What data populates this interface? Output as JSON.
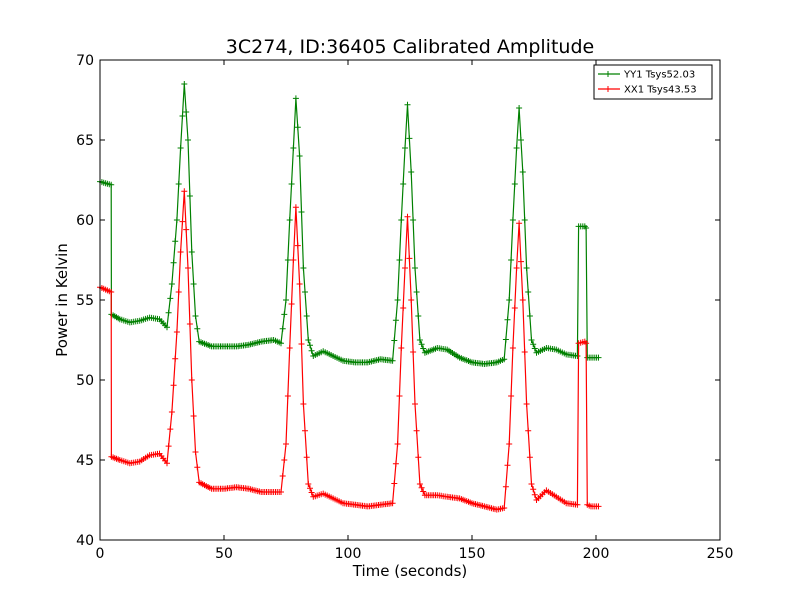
{
  "chart_data": {
    "type": "line",
    "title": "3C274, ID:36405 Calibrated Amplitude",
    "xlabel": "Time (seconds)",
    "ylabel": "Power in Kelvin",
    "xlim": [
      0,
      250
    ],
    "ylim": [
      40,
      70
    ],
    "xticks": [
      "0",
      "50",
      "100",
      "150",
      "200",
      "250"
    ],
    "yticks": [
      "40",
      "45",
      "50",
      "55",
      "60",
      "65",
      "70"
    ],
    "grid": false,
    "legend_position": "top-right",
    "marker": "plus",
    "series": [
      {
        "name": "YY1 Tsys52.03",
        "color": "#008000",
        "points": [
          [
            0,
            62.4
          ],
          [
            4.5,
            62.2
          ],
          [
            4.6,
            54.1
          ],
          [
            8,
            53.8
          ],
          [
            12,
            53.6
          ],
          [
            16,
            53.7
          ],
          [
            20,
            53.9
          ],
          [
            24,
            53.8
          ],
          [
            27,
            53.3
          ],
          [
            29,
            56
          ],
          [
            31,
            60
          ],
          [
            32.5,
            64.5
          ],
          [
            34,
            68.5
          ],
          [
            35.5,
            65
          ],
          [
            37,
            58
          ],
          [
            38.5,
            54
          ],
          [
            40,
            52.4
          ],
          [
            45,
            52.1
          ],
          [
            50,
            52.1
          ],
          [
            55,
            52.1
          ],
          [
            60,
            52.2
          ],
          [
            65,
            52.4
          ],
          [
            70,
            52.5
          ],
          [
            73,
            52.3
          ],
          [
            75,
            55
          ],
          [
            76.5,
            60
          ],
          [
            78,
            64.5
          ],
          [
            79,
            67.6
          ],
          [
            80.5,
            64
          ],
          [
            82,
            57
          ],
          [
            84,
            52.5
          ],
          [
            86,
            51.5
          ],
          [
            90,
            51.8
          ],
          [
            94,
            51.5
          ],
          [
            98,
            51.2
          ],
          [
            103,
            51.1
          ],
          [
            108,
            51.1
          ],
          [
            113,
            51.3
          ],
          [
            118,
            51.2
          ],
          [
            120,
            55
          ],
          [
            121.5,
            60
          ],
          [
            123,
            64.5
          ],
          [
            124,
            67.2
          ],
          [
            125.5,
            63
          ],
          [
            127,
            57
          ],
          [
            129,
            52.5
          ],
          [
            131,
            51.7
          ],
          [
            136,
            52
          ],
          [
            140,
            51.9
          ],
          [
            145,
            51.4
          ],
          [
            150,
            51.1
          ],
          [
            155,
            51
          ],
          [
            160,
            51.1
          ],
          [
            163,
            51.3
          ],
          [
            165,
            55
          ],
          [
            166.5,
            60
          ],
          [
            168,
            64.5
          ],
          [
            169,
            67
          ],
          [
            170.5,
            63
          ],
          [
            172,
            57
          ],
          [
            174,
            52.5
          ],
          [
            176,
            51.7
          ],
          [
            180,
            52
          ],
          [
            184,
            51.9
          ],
          [
            188,
            51.6
          ],
          [
            192.5,
            51.5
          ],
          [
            193,
            59.6
          ],
          [
            195.5,
            59.6
          ],
          [
            196,
            59.5
          ],
          [
            196.5,
            51.4
          ],
          [
            198,
            51.4
          ],
          [
            201,
            51.4
          ]
        ]
      },
      {
        "name": "XX1 Tsys43.53",
        "color": "#ff0000",
        "points": [
          [
            0,
            55.8
          ],
          [
            4.5,
            55.5
          ],
          [
            4.6,
            45.2
          ],
          [
            8,
            45
          ],
          [
            12,
            44.8
          ],
          [
            16,
            44.9
          ],
          [
            20,
            45.3
          ],
          [
            24,
            45.4
          ],
          [
            27,
            44.8
          ],
          [
            29,
            48
          ],
          [
            31,
            53
          ],
          [
            32.5,
            58
          ],
          [
            34,
            61.8
          ],
          [
            35.5,
            57
          ],
          [
            37,
            50
          ],
          [
            38.5,
            45.5
          ],
          [
            40,
            43.6
          ],
          [
            45,
            43.2
          ],
          [
            50,
            43.2
          ],
          [
            55,
            43.3
          ],
          [
            60,
            43.2
          ],
          [
            65,
            43
          ],
          [
            70,
            43
          ],
          [
            73,
            43
          ],
          [
            75,
            46
          ],
          [
            76.5,
            52
          ],
          [
            78,
            57.5
          ],
          [
            79,
            60.8
          ],
          [
            80.5,
            56
          ],
          [
            82,
            48.5
          ],
          [
            84,
            43.5
          ],
          [
            86,
            42.7
          ],
          [
            90,
            42.9
          ],
          [
            94,
            42.6
          ],
          [
            98,
            42.3
          ],
          [
            103,
            42.2
          ],
          [
            108,
            42.1
          ],
          [
            113,
            42.2
          ],
          [
            118,
            42.3
          ],
          [
            120,
            46
          ],
          [
            121.5,
            52
          ],
          [
            123,
            57
          ],
          [
            124,
            60.2
          ],
          [
            125.5,
            55
          ],
          [
            127,
            48.5
          ],
          [
            129,
            43.5
          ],
          [
            131,
            42.8
          ],
          [
            136,
            42.8
          ],
          [
            140,
            42.7
          ],
          [
            145,
            42.6
          ],
          [
            150,
            42.3
          ],
          [
            155,
            42.1
          ],
          [
            160,
            41.9
          ],
          [
            163,
            42
          ],
          [
            165,
            46
          ],
          [
            166.5,
            52
          ],
          [
            168,
            57
          ],
          [
            169,
            59.8
          ],
          [
            170.5,
            55
          ],
          [
            172,
            48.5
          ],
          [
            174,
            43.5
          ],
          [
            176,
            42.5
          ],
          [
            180,
            43.1
          ],
          [
            184,
            42.7
          ],
          [
            188,
            42.3
          ],
          [
            192.5,
            42.2
          ],
          [
            193,
            52.3
          ],
          [
            195.5,
            52.4
          ],
          [
            196,
            52.3
          ],
          [
            196.5,
            42.2
          ],
          [
            198,
            42.1
          ],
          [
            201,
            42.1
          ]
        ]
      }
    ]
  }
}
